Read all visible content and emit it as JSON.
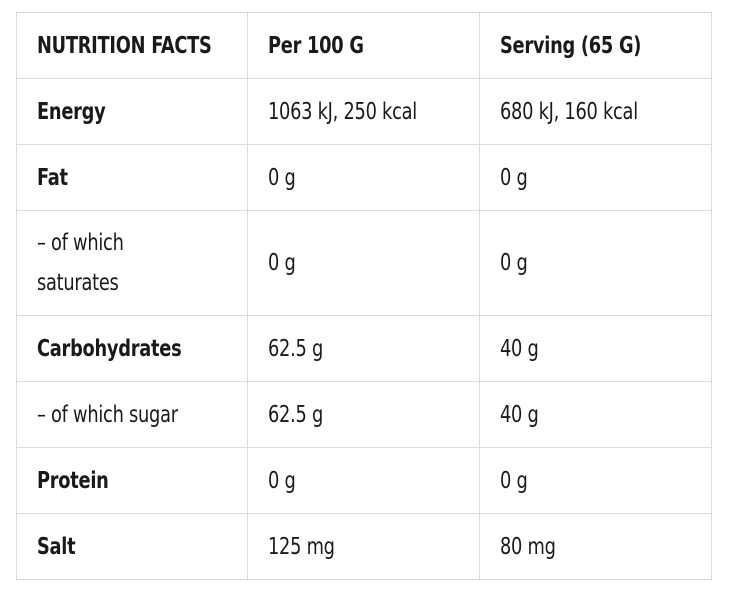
{
  "header": {
    "col1": "NUTRITION FACTS",
    "col2": "Per 100 G",
    "col3": "Serving (65 G)"
  },
  "rows": [
    {
      "label": "Energy",
      "per100": "1063 kJ, 250 kcal",
      "serving": "680 kJ, 160 kcal"
    },
    {
      "label": "Fat",
      "per100": "0 g",
      "serving": "0 g"
    },
    {
      "label": "– of which saturates",
      "per100": "0 g",
      "serving": "0 g"
    },
    {
      "label": "Carbohydrates",
      "per100": "62.5 g",
      "serving": "40 g"
    },
    {
      "label": "– of which sugar",
      "per100": "62.5 g",
      "serving": "40 g"
    },
    {
      "label": "Protein",
      "per100": "0 g",
      "serving": "0 g"
    },
    {
      "label": "Salt",
      "per100": "125 mg",
      "serving": "80 mg"
    }
  ],
  "colors": {
    "border": "#dcdcdc",
    "text": "#1a1a1a",
    "background": "#ffffff"
  }
}
